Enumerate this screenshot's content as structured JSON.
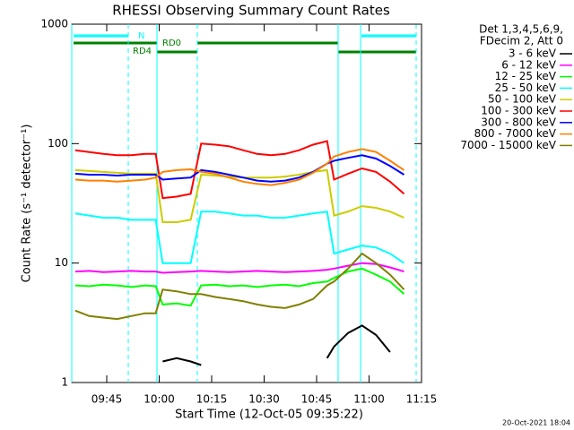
{
  "chart_data": {
    "type": "line",
    "title": "RHESSI Observing Summary Count Rates",
    "xlabel": "Start Time (12-Oct-05 09:35:22)",
    "ylabel": "Count Rate (s⁻¹ detector⁻¹)",
    "legend_title": [
      "Det 1,3,4,5,6,9,",
      "FDecim 2, Att 0"
    ],
    "annotations": [
      "N",
      "RD0",
      "RD4"
    ],
    "footer": "20-Oct-2021 18:04",
    "log_y": true,
    "ylim": [
      1,
      1000
    ],
    "yticks": [
      1,
      10,
      100,
      1000
    ],
    "xlim": [
      "09:35",
      "11:15"
    ],
    "xticks": [
      "09:45",
      "10:00",
      "10:15",
      "10:30",
      "10:45",
      "11:00",
      "11:15"
    ],
    "x": [
      "09:36",
      "09:40",
      "09:44",
      "09:48",
      "09:52",
      "09:56",
      "09:59",
      "10:01",
      "10:05",
      "10:09",
      "10:12",
      "10:16",
      "10:20",
      "10:24",
      "10:28",
      "10:32",
      "10:36",
      "10:40",
      "10:44",
      "10:48",
      "10:50",
      "10:54",
      "10:58",
      "11:02",
      "11:06",
      "11:10"
    ],
    "series": [
      {
        "name": "3 - 6 keV",
        "color": "#000000",
        "values": [
          null,
          null,
          null,
          null,
          null,
          null,
          null,
          1.5,
          1.6,
          1.5,
          1.4,
          null,
          null,
          null,
          null,
          null,
          null,
          null,
          null,
          1.6,
          2.0,
          2.6,
          3.0,
          2.5,
          1.8,
          null
        ]
      },
      {
        "name": "6 - 12 keV",
        "color": "#ff00ff",
        "values": [
          8.5,
          8.6,
          8.4,
          8.5,
          8.6,
          8.5,
          8.5,
          8.3,
          8.4,
          8.5,
          8.6,
          8.5,
          8.4,
          8.5,
          8.6,
          8.5,
          8.4,
          8.5,
          8.6,
          8.8,
          9.0,
          9.5,
          10,
          9.8,
          9.2,
          8.5
        ]
      },
      {
        "name": "12 - 25 keV",
        "color": "#00ff00",
        "values": [
          6.5,
          6.4,
          6.6,
          6.5,
          6.3,
          6.5,
          6.4,
          4.5,
          4.6,
          4.4,
          6.5,
          6.6,
          6.4,
          6.5,
          6.3,
          6.5,
          6.6,
          6.4,
          6.8,
          7.0,
          7.5,
          8.5,
          9.0,
          8.0,
          7.0,
          5.5
        ]
      },
      {
        "name": "25 - 50 keV",
        "color": "#00ffff",
        "values": [
          26,
          25,
          24,
          24,
          23,
          23,
          23,
          10,
          10,
          10,
          27,
          27,
          26,
          25,
          25,
          24,
          24,
          25,
          26,
          27,
          12,
          13,
          14,
          13.5,
          12,
          10
        ]
      },
      {
        "name": "50 - 100 keV",
        "color": "#cccc00",
        "values": [
          60,
          59,
          58,
          57,
          56,
          56,
          56,
          22,
          22,
          23,
          55,
          54,
          53,
          52,
          52,
          52,
          53,
          55,
          58,
          60,
          25,
          27,
          30,
          29,
          27,
          24
        ]
      },
      {
        "name": "100 - 300 keV",
        "color": "#ff0000",
        "values": [
          88,
          85,
          82,
          80,
          80,
          82,
          82,
          35,
          36,
          38,
          100,
          98,
          95,
          88,
          82,
          80,
          82,
          88,
          98,
          105,
          50,
          56,
          62,
          58,
          48,
          38
        ]
      },
      {
        "name": "300 - 800 keV",
        "color": "#0000ff",
        "values": [
          56,
          55,
          55,
          54,
          55,
          55,
          55,
          50,
          51,
          52,
          60,
          58,
          55,
          52,
          49,
          48,
          49,
          52,
          58,
          68,
          72,
          76,
          80,
          75,
          65,
          55
        ]
      },
      {
        "name": "800 - 7000 keV",
        "color": "#ff8000",
        "values": [
          50,
          49,
          49,
          48,
          49,
          50,
          52,
          58,
          60,
          61,
          58,
          56,
          52,
          48,
          46,
          45,
          47,
          50,
          57,
          68,
          78,
          85,
          90,
          85,
          72,
          60
        ]
      },
      {
        "name": "7000 - 15000 keV",
        "color": "#808000",
        "values": [
          4.0,
          3.6,
          3.5,
          3.4,
          3.6,
          3.8,
          3.8,
          6.0,
          5.8,
          5.5,
          5.5,
          5.2,
          5.0,
          4.8,
          4.5,
          4.3,
          4.2,
          4.5,
          5.0,
          6.5,
          7.0,
          9.0,
          12,
          10,
          8,
          6
        ]
      }
    ]
  }
}
